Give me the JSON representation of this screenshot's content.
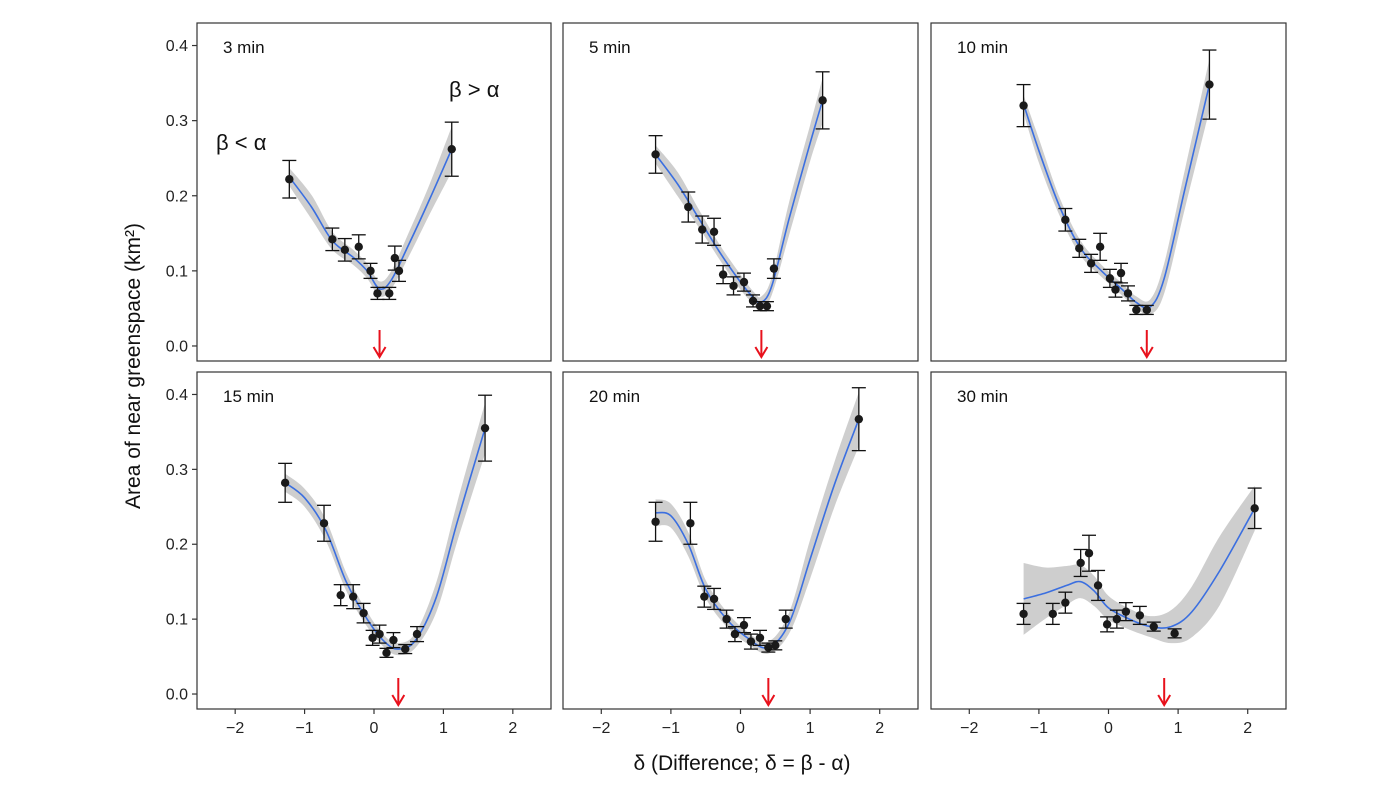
{
  "chart_data": {
    "type": "scatter",
    "xlabel": "δ (Difference; δ = β - α)",
    "ylabel": "Area of near greenspace (km²)",
    "xlim": [
      -2.55,
      2.55
    ],
    "ylim": [
      -0.02,
      0.43
    ],
    "x_ticks": [
      -2,
      -1,
      0,
      1,
      2
    ],
    "x_tick_labels": [
      "−2",
      "−1",
      "0",
      "1",
      "2"
    ],
    "y_ticks": [
      0.0,
      0.1,
      0.2,
      0.3,
      0.4
    ],
    "y_tick_labels": [
      "0.0",
      "0.1",
      "0.2",
      "0.3",
      "0.4"
    ],
    "grid": false,
    "colors": {
      "points": "#1a1a1a",
      "fit_line": "#3b6fe0",
      "band": "#c9c9c9",
      "arrow": "#e8111c",
      "frame": "#333333"
    },
    "panels": [
      {
        "label": "3 min",
        "annotations": [
          "β < α",
          "β > α"
        ],
        "arrow_x": 0.08,
        "points": [
          {
            "x": -1.22,
            "y": 0.222,
            "err": 0.025
          },
          {
            "x": -0.6,
            "y": 0.142,
            "err": 0.015
          },
          {
            "x": -0.42,
            "y": 0.128,
            "err": 0.015
          },
          {
            "x": -0.22,
            "y": 0.132,
            "err": 0.016
          },
          {
            "x": -0.05,
            "y": 0.1,
            "err": 0.01
          },
          {
            "x": 0.05,
            "y": 0.07,
            "err": 0.008
          },
          {
            "x": 0.22,
            "y": 0.07,
            "err": 0.008
          },
          {
            "x": 0.3,
            "y": 0.117,
            "err": 0.016
          },
          {
            "x": 0.36,
            "y": 0.1,
            "err": 0.014
          },
          {
            "x": 1.12,
            "y": 0.262,
            "err": 0.036
          }
        ],
        "fit": [
          [
            -1.22,
            0.225
          ],
          [
            -0.9,
            0.185
          ],
          [
            -0.6,
            0.14
          ],
          [
            -0.3,
            0.118
          ],
          [
            -0.1,
            0.1
          ],
          [
            0.08,
            0.076
          ],
          [
            0.25,
            0.088
          ],
          [
            0.5,
            0.135
          ],
          [
            0.8,
            0.195
          ],
          [
            1.12,
            0.262
          ]
        ],
        "band": [
          0.012,
          0.016,
          0.012,
          0.01,
          0.01,
          0.01,
          0.012,
          0.016,
          0.02,
          0.03
        ]
      },
      {
        "label": "5 min",
        "arrow_x": 0.3,
        "points": [
          {
            "x": -1.22,
            "y": 0.255,
            "err": 0.025
          },
          {
            "x": -0.75,
            "y": 0.185,
            "err": 0.02
          },
          {
            "x": -0.55,
            "y": 0.155,
            "err": 0.018
          },
          {
            "x": -0.38,
            "y": 0.152,
            "err": 0.018
          },
          {
            "x": -0.25,
            "y": 0.095,
            "err": 0.012
          },
          {
            "x": -0.1,
            "y": 0.08,
            "err": 0.012
          },
          {
            "x": 0.05,
            "y": 0.085,
            "err": 0.012
          },
          {
            "x": 0.18,
            "y": 0.06,
            "err": 0.008
          },
          {
            "x": 0.28,
            "y": 0.053,
            "err": 0.006
          },
          {
            "x": 0.38,
            "y": 0.053,
            "err": 0.006
          },
          {
            "x": 0.48,
            "y": 0.103,
            "err": 0.013
          },
          {
            "x": 1.18,
            "y": 0.327,
            "err": 0.038
          }
        ],
        "fit": [
          [
            -1.22,
            0.255
          ],
          [
            -0.9,
            0.215
          ],
          [
            -0.6,
            0.17
          ],
          [
            -0.3,
            0.125
          ],
          [
            0.0,
            0.085
          ],
          [
            0.2,
            0.063
          ],
          [
            0.3,
            0.058
          ],
          [
            0.45,
            0.08
          ],
          [
            0.7,
            0.17
          ],
          [
            1.0,
            0.27
          ],
          [
            1.18,
            0.327
          ]
        ],
        "band": [
          0.012,
          0.016,
          0.012,
          0.01,
          0.01,
          0.008,
          0.008,
          0.012,
          0.022,
          0.024,
          0.03
        ]
      },
      {
        "label": "10 min",
        "arrow_x": 0.55,
        "points": [
          {
            "x": -1.22,
            "y": 0.32,
            "err": 0.028
          },
          {
            "x": -0.62,
            "y": 0.168,
            "err": 0.015
          },
          {
            "x": -0.42,
            "y": 0.13,
            "err": 0.012
          },
          {
            "x": -0.25,
            "y": 0.11,
            "err": 0.012
          },
          {
            "x": -0.12,
            "y": 0.132,
            "err": 0.018
          },
          {
            "x": 0.02,
            "y": 0.09,
            "err": 0.012
          },
          {
            "x": 0.1,
            "y": 0.075,
            "err": 0.01
          },
          {
            "x": 0.18,
            "y": 0.097,
            "err": 0.013
          },
          {
            "x": 0.28,
            "y": 0.07,
            "err": 0.01
          },
          {
            "x": 0.4,
            "y": 0.048,
            "err": 0.006
          },
          {
            "x": 0.55,
            "y": 0.048,
            "err": 0.006
          },
          {
            "x": 1.45,
            "y": 0.348,
            "err": 0.046
          }
        ],
        "fit": [
          [
            -1.22,
            0.322
          ],
          [
            -1.0,
            0.26
          ],
          [
            -0.7,
            0.185
          ],
          [
            -0.4,
            0.13
          ],
          [
            -0.1,
            0.1
          ],
          [
            0.2,
            0.075
          ],
          [
            0.4,
            0.058
          ],
          [
            0.6,
            0.052
          ],
          [
            0.8,
            0.09
          ],
          [
            1.1,
            0.21
          ],
          [
            1.45,
            0.348
          ]
        ],
        "band": [
          0.012,
          0.016,
          0.012,
          0.01,
          0.008,
          0.008,
          0.008,
          0.01,
          0.02,
          0.026,
          0.034
        ]
      },
      {
        "label": "15 min",
        "arrow_x": 0.35,
        "points": [
          {
            "x": -1.28,
            "y": 0.282,
            "err": 0.026
          },
          {
            "x": -0.72,
            "y": 0.228,
            "err": 0.024
          },
          {
            "x": -0.48,
            "y": 0.132,
            "err": 0.014
          },
          {
            "x": -0.3,
            "y": 0.13,
            "err": 0.016
          },
          {
            "x": -0.15,
            "y": 0.108,
            "err": 0.013
          },
          {
            "x": -0.02,
            "y": 0.075,
            "err": 0.01
          },
          {
            "x": 0.08,
            "y": 0.08,
            "err": 0.012
          },
          {
            "x": 0.18,
            "y": 0.055,
            "err": 0.006
          },
          {
            "x": 0.28,
            "y": 0.072,
            "err": 0.01
          },
          {
            "x": 0.45,
            "y": 0.06,
            "err": 0.006
          },
          {
            "x": 0.62,
            "y": 0.08,
            "err": 0.01
          },
          {
            "x": 1.6,
            "y": 0.355,
            "err": 0.044
          }
        ],
        "fit": [
          [
            -1.28,
            0.282
          ],
          [
            -1.0,
            0.262
          ],
          [
            -0.7,
            0.22
          ],
          [
            -0.4,
            0.15
          ],
          [
            -0.1,
            0.1
          ],
          [
            0.15,
            0.07
          ],
          [
            0.35,
            0.06
          ],
          [
            0.6,
            0.072
          ],
          [
            0.9,
            0.13
          ],
          [
            1.2,
            0.23
          ],
          [
            1.6,
            0.355
          ]
        ],
        "band": [
          0.012,
          0.012,
          0.014,
          0.012,
          0.01,
          0.008,
          0.008,
          0.01,
          0.02,
          0.026,
          0.034
        ]
      },
      {
        "label": "20 min",
        "arrow_x": 0.4,
        "points": [
          {
            "x": -1.22,
            "y": 0.23,
            "err": 0.026
          },
          {
            "x": -0.72,
            "y": 0.228,
            "err": 0.028
          },
          {
            "x": -0.52,
            "y": 0.13,
            "err": 0.014
          },
          {
            "x": -0.38,
            "y": 0.127,
            "err": 0.014
          },
          {
            "x": -0.2,
            "y": 0.1,
            "err": 0.012
          },
          {
            "x": -0.08,
            "y": 0.08,
            "err": 0.01
          },
          {
            "x": 0.05,
            "y": 0.092,
            "err": 0.01
          },
          {
            "x": 0.15,
            "y": 0.07,
            "err": 0.01
          },
          {
            "x": 0.28,
            "y": 0.075,
            "err": 0.01
          },
          {
            "x": 0.4,
            "y": 0.062,
            "err": 0.006
          },
          {
            "x": 0.5,
            "y": 0.065,
            "err": 0.006
          },
          {
            "x": 0.65,
            "y": 0.1,
            "err": 0.012
          },
          {
            "x": 1.7,
            "y": 0.367,
            "err": 0.042
          }
        ],
        "fit": [
          [
            -1.22,
            0.242
          ],
          [
            -1.0,
            0.238
          ],
          [
            -0.75,
            0.2
          ],
          [
            -0.5,
            0.14
          ],
          [
            -0.2,
            0.1
          ],
          [
            0.1,
            0.075
          ],
          [
            0.4,
            0.062
          ],
          [
            0.7,
            0.095
          ],
          [
            1.0,
            0.18
          ],
          [
            1.35,
            0.28
          ],
          [
            1.7,
            0.367
          ]
        ],
        "band": [
          0.018,
          0.016,
          0.016,
          0.012,
          0.01,
          0.008,
          0.008,
          0.014,
          0.026,
          0.03,
          0.036
        ]
      },
      {
        "label": "30 min",
        "arrow_x": 0.8,
        "points": [
          {
            "x": -1.22,
            "y": 0.107,
            "err": 0.014
          },
          {
            "x": -0.8,
            "y": 0.107,
            "err": 0.014
          },
          {
            "x": -0.62,
            "y": 0.122,
            "err": 0.014
          },
          {
            "x": -0.4,
            "y": 0.175,
            "err": 0.018
          },
          {
            "x": -0.28,
            "y": 0.188,
            "err": 0.024
          },
          {
            "x": -0.15,
            "y": 0.145,
            "err": 0.02
          },
          {
            "x": -0.02,
            "y": 0.093,
            "err": 0.01
          },
          {
            "x": 0.12,
            "y": 0.1,
            "err": 0.012
          },
          {
            "x": 0.25,
            "y": 0.11,
            "err": 0.012
          },
          {
            "x": 0.45,
            "y": 0.105,
            "err": 0.012
          },
          {
            "x": 0.65,
            "y": 0.09,
            "err": 0.006
          },
          {
            "x": 0.95,
            "y": 0.081,
            "err": 0.006
          },
          {
            "x": 2.1,
            "y": 0.248,
            "err": 0.027
          }
        ],
        "fit": [
          [
            -1.22,
            0.127
          ],
          [
            -0.9,
            0.135
          ],
          [
            -0.6,
            0.145
          ],
          [
            -0.4,
            0.15
          ],
          [
            -0.2,
            0.137
          ],
          [
            0.0,
            0.115
          ],
          [
            0.3,
            0.1
          ],
          [
            0.6,
            0.09
          ],
          [
            0.9,
            0.09
          ],
          [
            1.2,
            0.11
          ],
          [
            1.6,
            0.165
          ],
          [
            2.1,
            0.248
          ]
        ],
        "band": [
          0.048,
          0.034,
          0.026,
          0.022,
          0.02,
          0.016,
          0.014,
          0.014,
          0.022,
          0.034,
          0.046,
          0.03
        ]
      }
    ]
  }
}
